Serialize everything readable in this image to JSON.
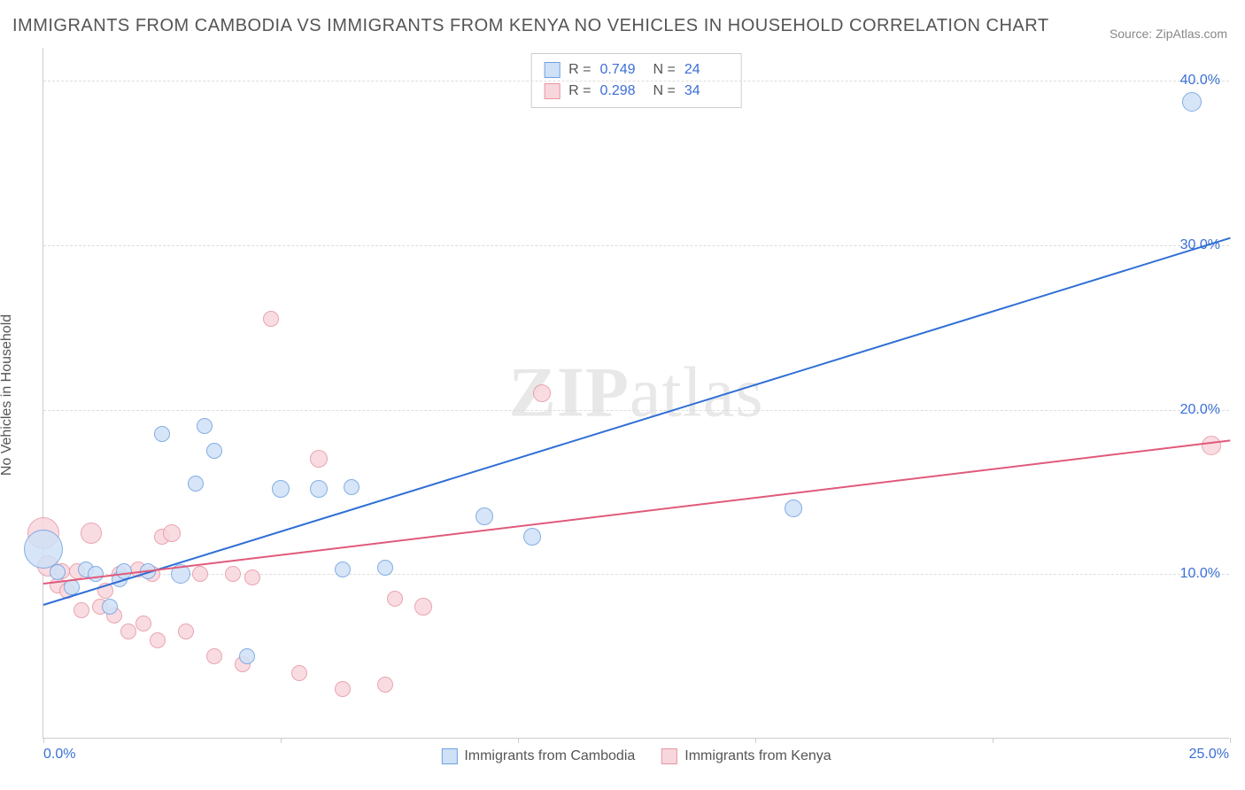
{
  "title": "IMMIGRANTS FROM CAMBODIA VS IMMIGRANTS FROM KENYA NO VEHICLES IN HOUSEHOLD CORRELATION CHART",
  "source": "Source: ZipAtlas.com",
  "ylabel": "No Vehicles in Household",
  "watermark_bold": "ZIP",
  "watermark_rest": "atlas",
  "chart": {
    "type": "scatter-correlation",
    "xlim": [
      0,
      25
    ],
    "ylim": [
      0,
      42
    ],
    "y_gridlines": [
      10,
      20,
      30,
      40
    ],
    "y_tick_labels": [
      "10.0%",
      "20.0%",
      "30.0%",
      "40.0%"
    ],
    "x_tick_positions": [
      0,
      5,
      10,
      15,
      20,
      25
    ],
    "x_tick_label_left": "0.0%",
    "x_tick_label_right": "25.0%",
    "grid_color": "#dddddd",
    "axis_color": "#cccccc",
    "tick_label_color": "#3b6fd6",
    "background_color": "#ffffff",
    "series": [
      {
        "key": "cambodia",
        "label": "Immigrants from Cambodia",
        "fill_color": "#cfe1f7",
        "stroke_color": "#6fa0e0",
        "line_color": "#2f6fd6",
        "R": "0.749",
        "N": "24",
        "trend": {
          "x0": 0,
          "y0": 8.2,
          "x1": 25,
          "y1": 30.5
        },
        "points": [
          {
            "x": 0.0,
            "y": 11.5,
            "r": 22
          },
          {
            "x": 0.3,
            "y": 10.1,
            "r": 9
          },
          {
            "x": 0.6,
            "y": 9.2,
            "r": 9
          },
          {
            "x": 0.9,
            "y": 10.3,
            "r": 9
          },
          {
            "x": 1.1,
            "y": 10.0,
            "r": 9
          },
          {
            "x": 1.4,
            "y": 8.0,
            "r": 9
          },
          {
            "x": 1.6,
            "y": 9.7,
            "r": 9
          },
          {
            "x": 1.7,
            "y": 10.2,
            "r": 9
          },
          {
            "x": 2.2,
            "y": 10.2,
            "r": 9
          },
          {
            "x": 2.5,
            "y": 18.5,
            "r": 9
          },
          {
            "x": 2.9,
            "y": 10.0,
            "r": 11
          },
          {
            "x": 3.2,
            "y": 15.5,
            "r": 9
          },
          {
            "x": 3.4,
            "y": 19.0,
            "r": 9
          },
          {
            "x": 3.6,
            "y": 17.5,
            "r": 9
          },
          {
            "x": 4.3,
            "y": 5.0,
            "r": 9
          },
          {
            "x": 5.0,
            "y": 15.2,
            "r": 10
          },
          {
            "x": 5.8,
            "y": 15.2,
            "r": 10
          },
          {
            "x": 6.3,
            "y": 10.3,
            "r": 9
          },
          {
            "x": 6.5,
            "y": 15.3,
            "r": 9
          },
          {
            "x": 7.2,
            "y": 10.4,
            "r": 9
          },
          {
            "x": 9.3,
            "y": 13.5,
            "r": 10
          },
          {
            "x": 10.3,
            "y": 12.3,
            "r": 10
          },
          {
            "x": 15.8,
            "y": 14.0,
            "r": 10
          },
          {
            "x": 24.2,
            "y": 38.7,
            "r": 11
          }
        ]
      },
      {
        "key": "kenya",
        "label": "Immigrants from Kenya",
        "fill_color": "#f8d7dc",
        "stroke_color": "#e795a4",
        "line_color": "#e05a7a",
        "R": "0.298",
        "N": "34",
        "trend": {
          "x0": 0,
          "y0": 9.5,
          "x1": 25,
          "y1": 18.2
        },
        "points": [
          {
            "x": 0.0,
            "y": 12.5,
            "r": 18
          },
          {
            "x": 0.1,
            "y": 10.5,
            "r": 12
          },
          {
            "x": 0.3,
            "y": 9.3,
            "r": 9
          },
          {
            "x": 0.4,
            "y": 10.2,
            "r": 9
          },
          {
            "x": 0.5,
            "y": 9.0,
            "r": 9
          },
          {
            "x": 0.7,
            "y": 10.2,
            "r": 9
          },
          {
            "x": 0.8,
            "y": 7.8,
            "r": 9
          },
          {
            "x": 1.0,
            "y": 12.5,
            "r": 12
          },
          {
            "x": 1.2,
            "y": 8.0,
            "r": 9
          },
          {
            "x": 1.3,
            "y": 9.0,
            "r": 9
          },
          {
            "x": 1.5,
            "y": 7.5,
            "r": 9
          },
          {
            "x": 1.6,
            "y": 10.0,
            "r": 9
          },
          {
            "x": 1.8,
            "y": 6.5,
            "r": 9
          },
          {
            "x": 2.0,
            "y": 10.3,
            "r": 9
          },
          {
            "x": 2.1,
            "y": 7.0,
            "r": 9
          },
          {
            "x": 2.3,
            "y": 10.0,
            "r": 9
          },
          {
            "x": 2.4,
            "y": 6.0,
            "r": 9
          },
          {
            "x": 2.5,
            "y": 12.3,
            "r": 9
          },
          {
            "x": 2.7,
            "y": 12.5,
            "r": 10
          },
          {
            "x": 3.0,
            "y": 6.5,
            "r": 9
          },
          {
            "x": 3.3,
            "y": 10.0,
            "r": 9
          },
          {
            "x": 3.6,
            "y": 5.0,
            "r": 9
          },
          {
            "x": 4.0,
            "y": 10.0,
            "r": 9
          },
          {
            "x": 4.2,
            "y": 4.5,
            "r": 9
          },
          {
            "x": 4.4,
            "y": 9.8,
            "r": 9
          },
          {
            "x": 4.8,
            "y": 25.5,
            "r": 9
          },
          {
            "x": 5.4,
            "y": 4.0,
            "r": 9
          },
          {
            "x": 5.8,
            "y": 17.0,
            "r": 10
          },
          {
            "x": 6.3,
            "y": 3.0,
            "r": 9
          },
          {
            "x": 7.2,
            "y": 3.3,
            "r": 9
          },
          {
            "x": 7.4,
            "y": 8.5,
            "r": 9
          },
          {
            "x": 8.0,
            "y": 8.0,
            "r": 10
          },
          {
            "x": 10.5,
            "y": 21.0,
            "r": 10
          },
          {
            "x": 24.6,
            "y": 17.8,
            "r": 11
          }
        ]
      }
    ]
  },
  "legend_top_labels": {
    "R": "R =",
    "N": "N ="
  }
}
